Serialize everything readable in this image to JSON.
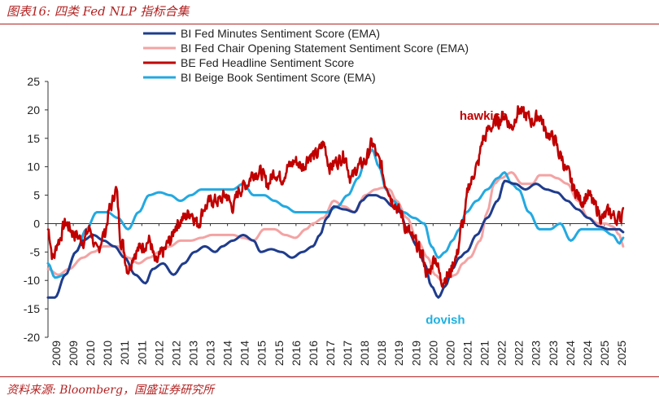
{
  "figure": {
    "title": "图表16:  四类 Fed NLP 指标合集",
    "source": "资料来源:  Bloomberg，国盛证券研究所"
  },
  "chart_data": {
    "type": "line",
    "title": "",
    "xlabel": "",
    "ylabel": "",
    "ylim": [
      -20,
      25
    ],
    "yticks": [
      25,
      20,
      15,
      10,
      5,
      0,
      -5,
      -10,
      -15,
      -20
    ],
    "xlim": [
      2009.0,
      2025.55
    ],
    "x_tick_labels": [
      "2009",
      "2009",
      "2010",
      "2010",
      "2011",
      "2011",
      "2012",
      "2012",
      "2013",
      "2013",
      "2014",
      "2014",
      "2015",
      "2015",
      "2016",
      "2016",
      "2017",
      "2017",
      "2018",
      "2018",
      "2019",
      "2019",
      "2020",
      "2020",
      "2021",
      "2021",
      "2022",
      "2022",
      "2023",
      "2023",
      "2024",
      "2024",
      "2025",
      "2025"
    ],
    "annotations": [
      {
        "text": "hawkish",
        "x": 2021.5,
        "y": 18.3,
        "color": "#c00000"
      },
      {
        "text": "dovish",
        "x": 2020.4,
        "y": -17.6,
        "color": "#1fb0e0"
      }
    ],
    "legend_position": "top-center",
    "series": [
      {
        "name": "BI Fed Minutes Sentiment Score (EMA)",
        "color": "#1f3c8c",
        "noise": 0,
        "x": [
          2009.0,
          2009.2,
          2009.5,
          2009.8,
          2010.0,
          2010.3,
          2010.6,
          2010.9,
          2011.2,
          2011.5,
          2011.8,
          2012.0,
          2012.3,
          2012.6,
          2012.9,
          2013.2,
          2013.5,
          2013.8,
          2014.0,
          2014.3,
          2014.6,
          2014.9,
          2015.1,
          2015.4,
          2015.7,
          2016.0,
          2016.3,
          2016.6,
          2016.8,
          2017.0,
          2017.2,
          2017.5,
          2017.8,
          2018.0,
          2018.2,
          2018.4,
          2018.6,
          2018.9,
          2019.1,
          2019.3,
          2019.6,
          2019.8,
          2020.0,
          2020.2,
          2020.4,
          2020.6,
          2020.8,
          2021.0,
          2021.3,
          2021.6,
          2021.9,
          2022.1,
          2022.4,
          2022.7,
          2023.0,
          2023.3,
          2023.6,
          2023.9,
          2024.2,
          2024.5,
          2024.8,
          2025.1,
          2025.4,
          2025.5
        ],
        "y": [
          -13,
          -13,
          -9,
          -5,
          -3,
          -2,
          -3,
          -4,
          -6,
          -9,
          -10.5,
          -8,
          -7,
          -9,
          -7,
          -5,
          -4,
          -5,
          -4,
          -3,
          -2,
          -3,
          -5,
          -4.5,
          -5,
          -6,
          -5,
          -4,
          -2,
          1,
          3,
          2.5,
          2,
          4,
          5,
          5,
          4.5,
          3,
          2,
          -1,
          -4,
          -7,
          -11,
          -13,
          -11,
          -8,
          -6,
          -5,
          -2,
          1,
          4,
          7.5,
          7,
          6,
          7,
          6,
          5.5,
          4,
          2.5,
          1,
          -0.5,
          -1,
          -1,
          -1.5
        ]
      },
      {
        "name": "BI Fed Chair Opening Statement Sentiment Score (EMA)",
        "color": "#f4a3a3",
        "noise": 0,
        "x": [
          2009.0,
          2009.3,
          2009.6,
          2010.0,
          2010.3,
          2010.6,
          2011.0,
          2011.3,
          2011.6,
          2011.9,
          2012.2,
          2012.5,
          2012.8,
          2013.1,
          2013.4,
          2013.7,
          2014.0,
          2014.3,
          2014.6,
          2014.9,
          2015.2,
          2015.5,
          2015.8,
          2016.1,
          2016.4,
          2016.6,
          2016.9,
          2017.2,
          2017.5,
          2017.8,
          2018.1,
          2018.4,
          2018.6,
          2018.8,
          2019.0,
          2019.3,
          2019.6,
          2019.9,
          2020.1,
          2020.3,
          2020.5,
          2020.7,
          2020.9,
          2021.1,
          2021.4,
          2021.6,
          2021.8,
          2022.0,
          2022.3,
          2022.6,
          2022.9,
          2023.1,
          2023.4,
          2023.6,
          2023.9,
          2024.2,
          2024.5,
          2024.8,
          2025.0,
          2025.2,
          2025.4,
          2025.5
        ],
        "y": [
          -8,
          -9,
          -8,
          -6,
          -5,
          -4,
          -4,
          -6,
          -7,
          -6,
          -5,
          -4,
          -3,
          -3,
          -2.5,
          -2,
          -2,
          -2,
          -2.5,
          -3,
          -1,
          -1,
          -2,
          -2.5,
          -1,
          0,
          1,
          4,
          3,
          2,
          5,
          6,
          6.3,
          6,
          4,
          1,
          -3,
          -6,
          -9,
          -10,
          -9.5,
          -9,
          -7,
          -6,
          -3,
          2,
          7,
          8,
          9,
          7,
          7,
          8.5,
          8.5,
          8,
          7,
          4,
          1,
          0,
          0,
          -0.5,
          -2,
          -4
        ]
      },
      {
        "name": "BE Fed Headline Sentiment Score",
        "color": "#c00000",
        "noise": 1.1,
        "x": [
          2009.0,
          2009.15,
          2009.3,
          2009.5,
          2009.8,
          2010.0,
          2010.2,
          2010.4,
          2010.6,
          2010.8,
          2010.95,
          2011.1,
          2011.3,
          2011.5,
          2011.7,
          2011.9,
          2012.1,
          2012.3,
          2012.5,
          2012.7,
          2012.9,
          2013.1,
          2013.3,
          2013.5,
          2013.7,
          2013.9,
          2014.1,
          2014.3,
          2014.5,
          2014.7,
          2014.9,
          2015.1,
          2015.3,
          2015.5,
          2015.7,
          2015.9,
          2016.1,
          2016.3,
          2016.5,
          2016.7,
          2016.9,
          2017.1,
          2017.3,
          2017.5,
          2017.7,
          2017.9,
          2018.1,
          2018.3,
          2018.5,
          2018.7,
          2018.9,
          2019.1,
          2019.3,
          2019.5,
          2019.7,
          2019.9,
          2020.1,
          2020.3,
          2020.5,
          2020.7,
          2020.9,
          2021.1,
          2021.3,
          2021.5,
          2021.7,
          2021.9,
          2022.1,
          2022.3,
          2022.5,
          2022.7,
          2022.9,
          2023.1,
          2023.3,
          2023.5,
          2023.7,
          2023.9,
          2024.1,
          2024.3,
          2024.5,
          2024.7,
          2024.9,
          2025.1,
          2025.3,
          2025.45,
          2025.5
        ],
        "y": [
          -1,
          -6,
          -3,
          0,
          -2,
          -3,
          -1,
          -5,
          -2,
          3,
          6,
          -3,
          -8,
          -5,
          -4,
          -3,
          -7,
          -5,
          -3,
          0,
          1,
          2,
          0,
          3,
          4,
          4,
          5,
          3,
          6,
          7,
          9,
          9,
          7,
          9,
          8,
          10,
          11,
          10,
          12,
          12,
          14,
          10,
          11,
          12,
          8,
          10,
          11,
          14,
          11,
          7,
          4,
          2,
          -1,
          -3,
          -5,
          -9,
          -6,
          -10,
          -9,
          -6,
          0,
          7,
          10,
          15,
          17,
          18,
          19,
          17,
          20,
          19,
          18,
          19,
          16,
          15,
          12,
          9,
          6,
          4,
          5,
          3,
          1,
          2,
          1,
          1,
          4
        ]
      },
      {
        "name": "BI Beige Book Sentiment Score (EMA)",
        "color": "#23a9e1",
        "noise": 0,
        "x": [
          2009.0,
          2009.2,
          2009.5,
          2009.8,
          2010.1,
          2010.4,
          2010.7,
          2011.0,
          2011.3,
          2011.6,
          2011.9,
          2012.2,
          2012.5,
          2012.8,
          2013.1,
          2013.4,
          2013.7,
          2014.0,
          2014.3,
          2014.6,
          2014.9,
          2015.2,
          2015.5,
          2015.8,
          2016.1,
          2016.4,
          2016.7,
          2017.0,
          2017.3,
          2017.6,
          2017.9,
          2018.1,
          2018.3,
          2018.5,
          2018.7,
          2018.9,
          2019.2,
          2019.5,
          2019.8,
          2020.0,
          2020.2,
          2020.4,
          2020.6,
          2020.8,
          2021.0,
          2021.3,
          2021.6,
          2021.9,
          2022.1,
          2022.3,
          2022.5,
          2022.8,
          2023.1,
          2023.4,
          2023.7,
          2024.0,
          2024.3,
          2024.6,
          2024.9,
          2025.2,
          2025.4,
          2025.5
        ],
        "y": [
          -7,
          -9.5,
          -9,
          -5,
          -1,
          2,
          2,
          1,
          -1,
          2,
          5,
          5.5,
          5,
          4,
          5,
          6,
          6,
          6,
          6,
          7,
          5,
          5,
          4,
          3,
          2,
          2,
          2,
          2,
          3,
          5,
          8,
          11,
          13,
          10,
          6,
          4,
          2,
          1,
          0,
          -4,
          -6,
          -5,
          -3,
          -1,
          2,
          4,
          6,
          8,
          9,
          7,
          6,
          2,
          -1,
          -1,
          0,
          -3,
          -1,
          -1,
          -1,
          -2,
          -3.5,
          -2.5
        ]
      }
    ]
  }
}
